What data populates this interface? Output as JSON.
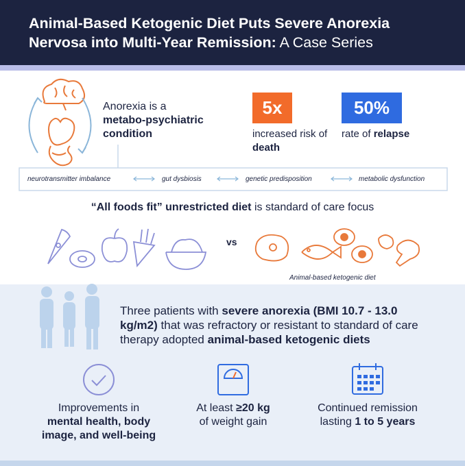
{
  "header": {
    "title_main": "Animal-Based Ketogenic Diet Puts Severe Anorexia Nervosa into Multi-Year Remission:",
    "title_rest": "A Case Series"
  },
  "intro": {
    "text": "Anorexia is a",
    "bold": "metabo-psychiatric condition"
  },
  "stats": [
    {
      "value": "5x",
      "text": "increased risk of",
      "bold": "death"
    },
    {
      "value": "50%",
      "text": "rate of",
      "bold": "relapse"
    }
  ],
  "factors": [
    "neurotransmitter imbalance",
    "gut dysbiosis",
    "genetic predisposition",
    "metabolic dysfunction"
  ],
  "statement": {
    "bold": "“All foods fit” unrestricted diet",
    "text": "is standard of care focus"
  },
  "comparison": {
    "vs": "vs",
    "caption": "Animal-based ketogenic diet"
  },
  "patients": {
    "parts": [
      "Three patients with",
      "severe anorexia (BMI 10.7 - 13.0 kg/m2)",
      "that was refractory or resistant to standard of care therapy adopted",
      "animal-based ketogenic diets"
    ]
  },
  "outcomes": [
    {
      "text": "Improvements in",
      "bold": "mental health, body image, and well-being"
    },
    {
      "text": "At least",
      "bold": "≥20 kg",
      "text2": "of weight gain"
    },
    {
      "text": "Continued remission lasting",
      "bold": "1 to 5 years"
    }
  ]
}
